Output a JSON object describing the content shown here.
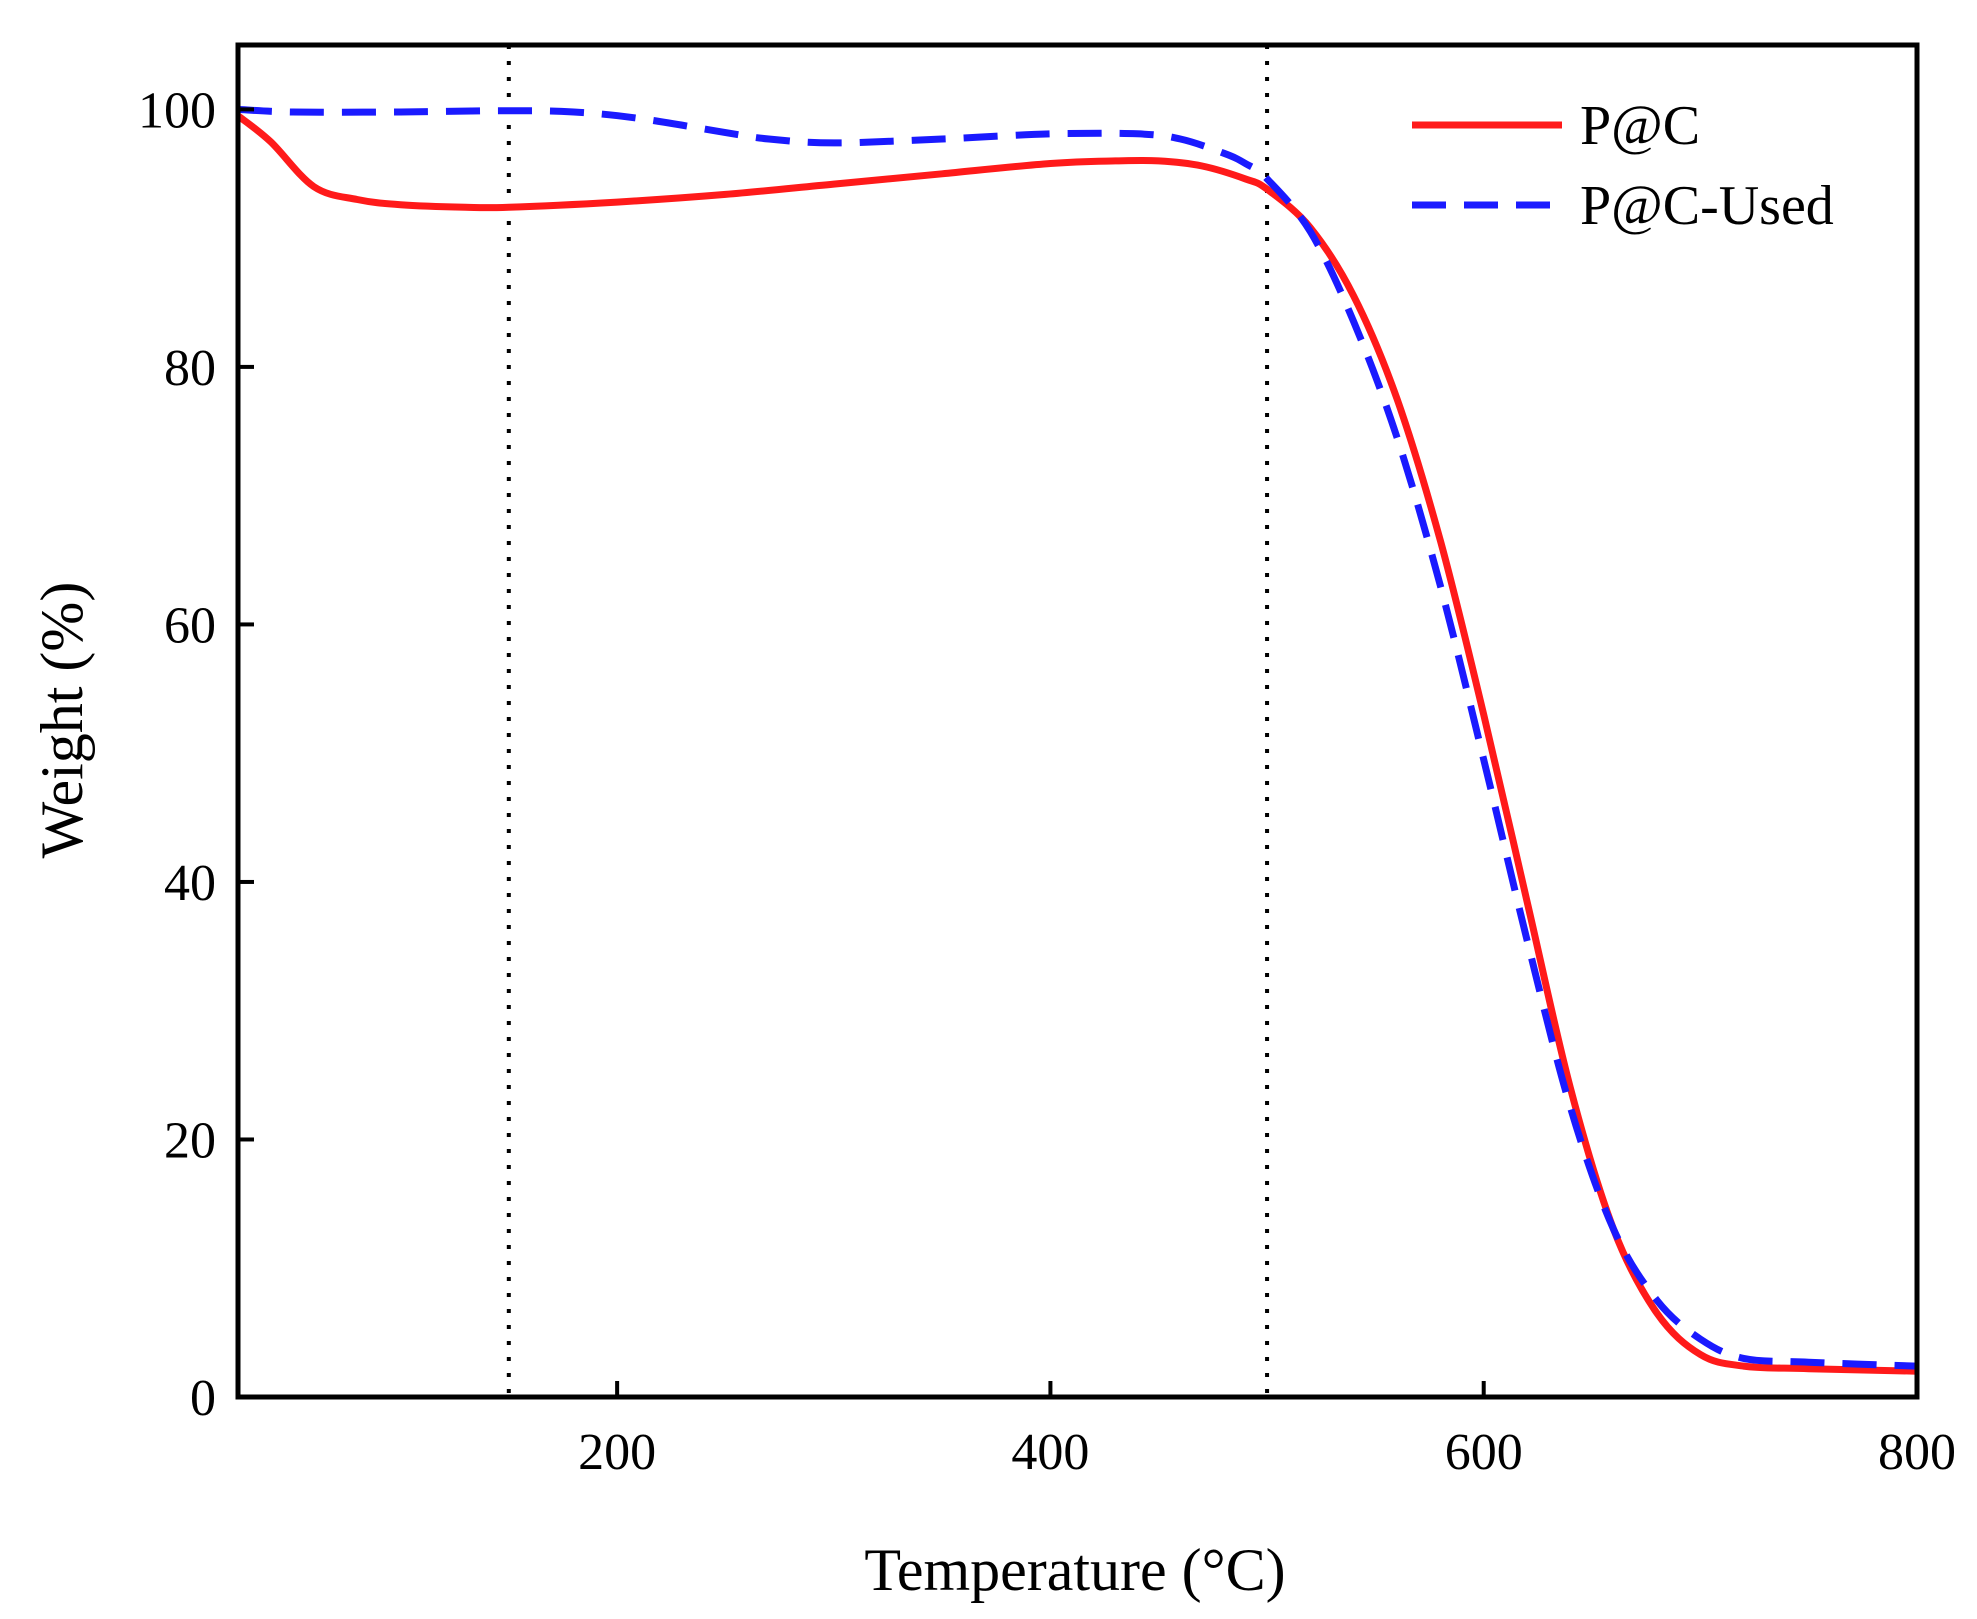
{
  "chart_data": {
    "type": "line",
    "title": "",
    "xlabel": "Temperature (°C)",
    "ylabel": "Weight (%)",
    "xlim": [
      25,
      800
    ],
    "ylim": [
      0,
      105
    ],
    "x_ticks": [
      200,
      400,
      600,
      800
    ],
    "y_ticks": [
      0,
      20,
      40,
      60,
      80,
      100
    ],
    "legend_position": "top-right",
    "reference_lines": [
      {
        "axis": "x",
        "value": 150,
        "style": "dotted",
        "color": "#000000"
      },
      {
        "axis": "x",
        "value": 500,
        "style": "dotted",
        "color": "#000000"
      }
    ],
    "series": [
      {
        "name": "P@C",
        "color": "#ff1a1a",
        "style": "solid",
        "x": [
          25,
          40,
          60,
          80,
          100,
          130,
          150,
          200,
          250,
          300,
          350,
          400,
          430,
          450,
          470,
          490,
          500,
          520,
          540,
          560,
          580,
          600,
          620,
          640,
          660,
          680,
          700,
          720,
          750,
          800
        ],
        "y": [
          99.5,
          97.5,
          94,
          93,
          92.6,
          92.4,
          92.4,
          92.8,
          93.4,
          94.2,
          95.0,
          95.8,
          96.0,
          96.0,
          95.6,
          94.6,
          93.8,
          90.8,
          85.5,
          77.5,
          66.5,
          53.0,
          38.5,
          24.0,
          13.0,
          6.5,
          3.3,
          2.4,
          2.2,
          2.0
        ]
      },
      {
        "name": "P@C-Used",
        "color": "#1a1aff",
        "style": "dashed",
        "x": [
          25,
          50,
          100,
          150,
          180,
          210,
          250,
          270,
          300,
          350,
          400,
          440,
          460,
          480,
          490,
          500,
          520,
          540,
          560,
          580,
          600,
          620,
          640,
          660,
          680,
          700,
          720,
          750,
          800
        ],
        "y": [
          100,
          99.8,
          99.8,
          99.9,
          99.8,
          99.3,
          98.2,
          97.7,
          97.4,
          97.7,
          98.1,
          98.1,
          97.7,
          96.6,
          95.8,
          94.6,
          90.5,
          83.5,
          74.5,
          63.0,
          49.5,
          35.5,
          22.5,
          13.0,
          7.5,
          4.5,
          3.0,
          2.7,
          2.4
        ]
      }
    ]
  }
}
